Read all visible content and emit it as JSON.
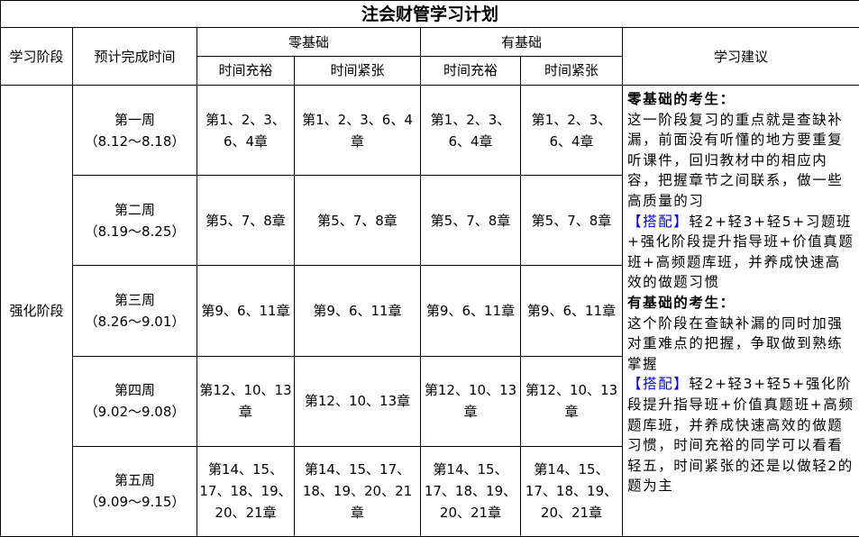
{
  "title": "注会财管学习计划",
  "headers": {
    "stage": "学习阶段",
    "time": "预计完成时间",
    "zero_basis": "零基础",
    "has_basis": "有基础",
    "advice": "学习建议",
    "ample": "时间充裕",
    "tight": "时间紧张"
  },
  "stage_name": "强化阶段",
  "weeks": [
    {
      "name": "第一周",
      "dates": "（8.12～8.18）",
      "cells": [
        "第1、2、3、6、4章",
        "第1、2、3、6、4章",
        "第1、2、3、6、4章",
        "第1、2、3、6、4章"
      ]
    },
    {
      "name": "第二周",
      "dates": "（8.19～8.25）",
      "cells": [
        "第5、7、8章",
        "第5、7、8章",
        "第5、7、8章",
        "第5、7、8章"
      ]
    },
    {
      "name": "第三周",
      "dates": "（8.26～9.01）",
      "cells": [
        "第9、6、11章",
        "第9、6、11章",
        "第9、6、11章",
        "第9、6、11章"
      ]
    },
    {
      "name": "第四周",
      "dates": "（9.02～9.08）",
      "cells": [
        "第12、10、13章",
        "第12、10、13章",
        "第12、10、13章",
        "第12、10、13章"
      ]
    },
    {
      "name": "第五周",
      "dates": "（9.09～9.15）",
      "cells": [
        "第14、15、17、18、19、20、21章",
        "第14、15、17、18、19、20、21章",
        "第14、15、17、18、19、20、21章",
        "第14、15、17、18、19、20、21章"
      ]
    }
  ],
  "advice": {
    "zero_heading": "零基础的考生：",
    "zero_text": "这一阶段复习的重点就是查缺补漏，前面没有听懂的地方要重复听课件，回归教材中的相应内容，把握章节之间联系，做一些高质量的习",
    "zero_tag": "【搭配】",
    "zero_combo": "轻2+轻3+轻5+习题班+强化阶段提升指导班+价值真题班+高频题库班，并养成快速高效的做题习惯",
    "has_heading": "有基础的考生：",
    "has_text": "这个阶段在查缺补漏的同时加强对重难点的把握，争取做到熟练掌握",
    "has_tag": "【搭配】",
    "has_combo": "轻2+轻3+轻5+强化阶段提升指导班+价值真题班+高频题库班，并养成快速高效的做题习惯，时间充裕的同学可以看看轻五，时间紧张的还是以做轻2的题为主"
  },
  "colors": {
    "tag": "#0000ee"
  }
}
